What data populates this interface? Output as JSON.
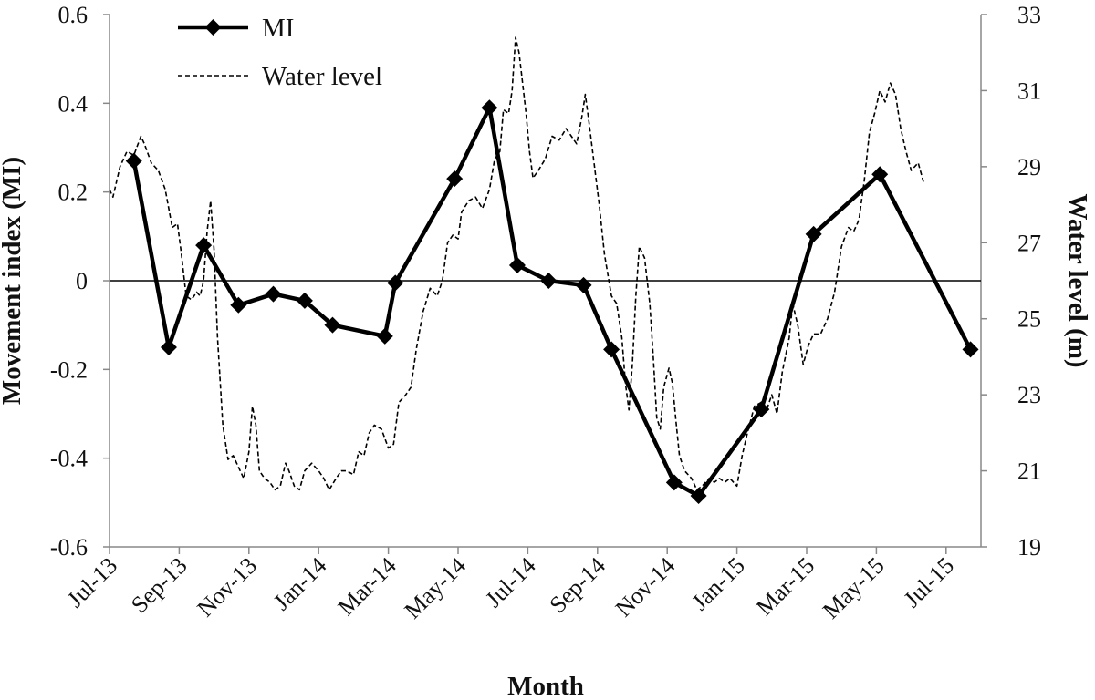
{
  "chart_data": {
    "type": "line",
    "title": "",
    "xlabel": "Month",
    "ylabel": "Movement index (MI)",
    "y2label": "Water level (m)",
    "x_tick_labels": [
      "Jul-13",
      "Sep-13",
      "Nov-13",
      "Jan-14",
      "Mar-14",
      "May-14",
      "Jul-14",
      "Sep-14",
      "Nov-14",
      "Jan-15",
      "Mar-15",
      "May-15",
      "Jul-15"
    ],
    "x_range_months": [
      0,
      25
    ],
    "ylim": [
      -0.6,
      0.6
    ],
    "y_ticks": [
      "-0.6",
      "-0.4",
      "-0.2",
      "0",
      "0.2",
      "0.4",
      "0.6"
    ],
    "y2lim": [
      19,
      33
    ],
    "y2_ticks": [
      "19",
      "21",
      "23",
      "25",
      "27",
      "29",
      "31",
      "33"
    ],
    "zero_line": true,
    "grid": false,
    "legend_placement": "top-left",
    "series": [
      {
        "name": "MI",
        "axis": "left",
        "style": "solid-diamond",
        "color": "#000000",
        "points": [
          [
            0.7,
            0.27
          ],
          [
            1.7,
            -0.15
          ],
          [
            2.7,
            0.08
          ],
          [
            3.7,
            -0.055
          ],
          [
            4.7,
            -0.03
          ],
          [
            5.6,
            -0.045
          ],
          [
            6.4,
            -0.1
          ],
          [
            7.9,
            -0.125
          ],
          [
            8.2,
            -0.005
          ],
          [
            9.9,
            0.23
          ],
          [
            10.9,
            0.39
          ],
          [
            11.7,
            0.035
          ],
          [
            12.6,
            0.0
          ],
          [
            13.6,
            -0.01
          ],
          [
            14.4,
            -0.155
          ],
          [
            16.2,
            -0.455
          ],
          [
            16.9,
            -0.485
          ],
          [
            18.7,
            -0.29
          ],
          [
            20.2,
            0.105
          ],
          [
            22.1,
            0.24
          ],
          [
            24.7,
            -0.155
          ]
        ]
      },
      {
        "name": "Water level",
        "axis": "right",
        "style": "dashed",
        "color": "#000000",
        "points": [
          [
            0.0,
            28.4
          ],
          [
            0.1,
            28.2
          ],
          [
            0.3,
            29.0
          ],
          [
            0.5,
            29.4
          ],
          [
            0.7,
            29.3
          ],
          [
            0.9,
            29.8
          ],
          [
            1.0,
            29.6
          ],
          [
            1.2,
            29.1
          ],
          [
            1.4,
            28.9
          ],
          [
            1.6,
            28.4
          ],
          [
            1.8,
            27.4
          ],
          [
            1.95,
            27.5
          ],
          [
            2.05,
            26.8
          ],
          [
            2.2,
            25.6
          ],
          [
            2.35,
            25.5
          ],
          [
            2.5,
            25.7
          ],
          [
            2.6,
            25.6
          ],
          [
            2.7,
            26.0
          ],
          [
            2.8,
            27.3
          ],
          [
            2.9,
            28.1
          ],
          [
            3.0,
            26.8
          ],
          [
            3.1,
            24.5
          ],
          [
            3.25,
            22.2
          ],
          [
            3.4,
            21.3
          ],
          [
            3.55,
            21.4
          ],
          [
            3.7,
            21.1
          ],
          [
            3.85,
            20.8
          ],
          [
            4.0,
            21.5
          ],
          [
            4.1,
            22.7
          ],
          [
            4.2,
            22.2
          ],
          [
            4.3,
            21.0
          ],
          [
            4.45,
            20.8
          ],
          [
            4.6,
            20.7
          ],
          [
            4.75,
            20.5
          ],
          [
            4.9,
            20.6
          ],
          [
            5.05,
            21.2
          ],
          [
            5.15,
            21.0
          ],
          [
            5.3,
            20.6
          ],
          [
            5.45,
            20.5
          ],
          [
            5.6,
            21.0
          ],
          [
            5.8,
            21.2
          ],
          [
            6.0,
            21.0
          ],
          [
            6.15,
            20.8
          ],
          [
            6.3,
            20.5
          ],
          [
            6.5,
            20.8
          ],
          [
            6.65,
            21.0
          ],
          [
            6.8,
            21.0
          ],
          [
            7.0,
            20.9
          ],
          [
            7.15,
            21.5
          ],
          [
            7.3,
            21.4
          ],
          [
            7.45,
            22.0
          ],
          [
            7.6,
            22.2
          ],
          [
            7.8,
            22.1
          ],
          [
            8.0,
            21.6
          ],
          [
            8.15,
            21.7
          ],
          [
            8.3,
            22.8
          ],
          [
            8.5,
            23.0
          ],
          [
            8.65,
            23.2
          ],
          [
            8.8,
            24.2
          ],
          [
            9.0,
            25.2
          ],
          [
            9.2,
            25.8
          ],
          [
            9.4,
            25.6
          ],
          [
            9.55,
            26.0
          ],
          [
            9.7,
            27.0
          ],
          [
            9.85,
            27.2
          ],
          [
            10.0,
            27.1
          ],
          [
            10.1,
            27.8
          ],
          [
            10.3,
            28.1
          ],
          [
            10.5,
            28.2
          ],
          [
            10.7,
            27.9
          ],
          [
            10.9,
            28.4
          ],
          [
            11.05,
            29.2
          ],
          [
            11.2,
            29.4
          ],
          [
            11.3,
            30.5
          ],
          [
            11.45,
            30.4
          ],
          [
            11.55,
            31.0
          ],
          [
            11.65,
            32.4
          ],
          [
            11.75,
            32.0
          ],
          [
            11.85,
            31.2
          ],
          [
            11.95,
            30.4
          ],
          [
            12.05,
            29.4
          ],
          [
            12.15,
            28.7
          ],
          [
            12.3,
            28.9
          ],
          [
            12.5,
            29.2
          ],
          [
            12.7,
            29.8
          ],
          [
            12.9,
            29.7
          ],
          [
            13.1,
            30.0
          ],
          [
            13.25,
            29.8
          ],
          [
            13.4,
            29.6
          ],
          [
            13.55,
            30.3
          ],
          [
            13.65,
            30.9
          ],
          [
            13.75,
            30.2
          ],
          [
            13.9,
            29.1
          ],
          [
            14.05,
            28.0
          ],
          [
            14.2,
            26.7
          ],
          [
            14.4,
            25.6
          ],
          [
            14.55,
            25.4
          ],
          [
            14.7,
            24.5
          ],
          [
            14.8,
            23.3
          ],
          [
            14.9,
            22.6
          ],
          [
            15.0,
            23.8
          ],
          [
            15.1,
            25.6
          ],
          [
            15.2,
            26.9
          ],
          [
            15.35,
            26.6
          ],
          [
            15.5,
            25.4
          ],
          [
            15.6,
            24.0
          ],
          [
            15.7,
            22.4
          ],
          [
            15.8,
            22.1
          ],
          [
            15.9,
            23.2
          ],
          [
            16.05,
            23.7
          ],
          [
            16.15,
            23.3
          ],
          [
            16.25,
            22.3
          ],
          [
            16.35,
            21.4
          ],
          [
            16.5,
            21.0
          ],
          [
            16.7,
            20.8
          ],
          [
            16.85,
            20.5
          ],
          [
            17.0,
            20.6
          ],
          [
            17.2,
            20.8
          ],
          [
            17.35,
            20.7
          ],
          [
            17.5,
            20.8
          ],
          [
            17.65,
            20.7
          ],
          [
            17.8,
            20.8
          ],
          [
            18.0,
            20.6
          ],
          [
            18.15,
            21.4
          ],
          [
            18.3,
            22.0
          ],
          [
            18.5,
            22.7
          ],
          [
            18.7,
            22.8
          ],
          [
            18.85,
            22.6
          ],
          [
            19.0,
            23.0
          ],
          [
            19.15,
            22.5
          ],
          [
            19.3,
            23.6
          ],
          [
            19.5,
            24.5
          ],
          [
            19.6,
            25.4
          ],
          [
            19.75,
            24.8
          ],
          [
            19.9,
            23.8
          ],
          [
            20.05,
            24.3
          ],
          [
            20.2,
            24.6
          ],
          [
            20.4,
            24.6
          ],
          [
            20.6,
            25.0
          ],
          [
            20.8,
            25.7
          ],
          [
            21.0,
            26.9
          ],
          [
            21.2,
            27.4
          ],
          [
            21.35,
            27.3
          ],
          [
            21.5,
            27.6
          ],
          [
            21.65,
            28.6
          ],
          [
            21.8,
            29.9
          ],
          [
            21.95,
            30.4
          ],
          [
            22.1,
            31.0
          ],
          [
            22.25,
            30.7
          ],
          [
            22.4,
            31.2
          ],
          [
            22.55,
            30.9
          ],
          [
            22.7,
            30.0
          ],
          [
            22.85,
            29.4
          ],
          [
            23.0,
            28.9
          ],
          [
            23.2,
            29.1
          ],
          [
            23.35,
            28.6
          ]
        ]
      }
    ]
  }
}
